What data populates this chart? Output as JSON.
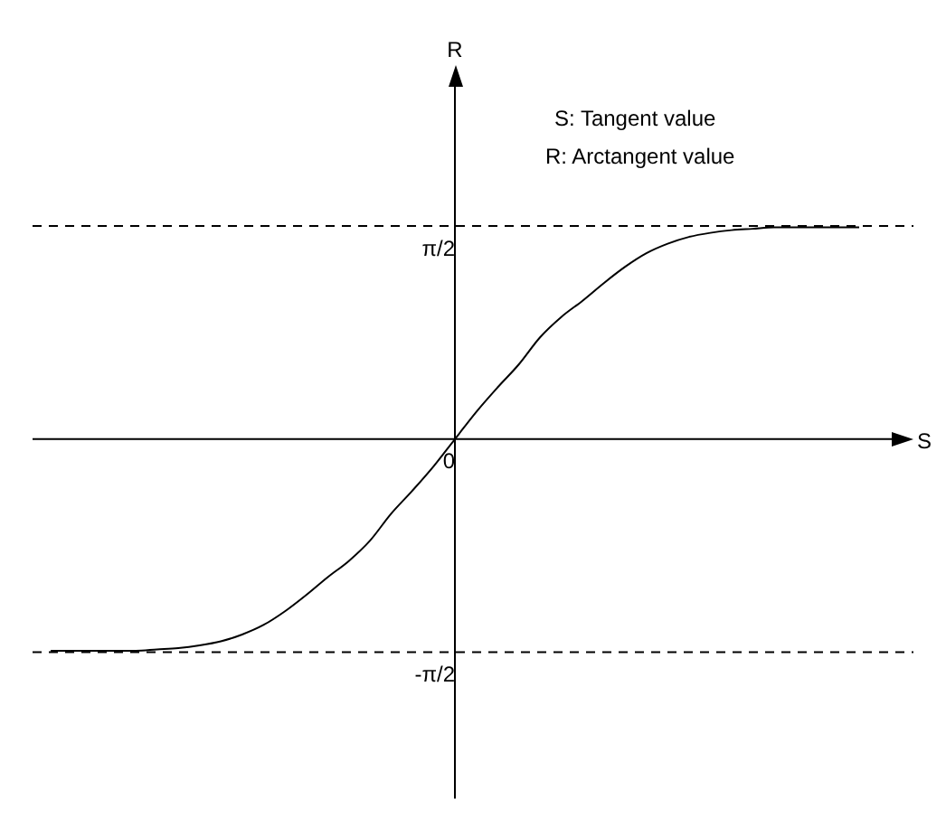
{
  "chart_data": {
    "type": "line",
    "xlabel": "S",
    "ylabel": "R",
    "annotations": [
      "S: Tangent value",
      "R: Arctangent value"
    ],
    "categories": [
      null,
      null,
      null,
      null,
      null,
      null,
      null,
      null,
      null,
      null,
      null,
      null,
      null,
      null,
      null,
      null,
      null,
      null,
      null,
      null,
      null,
      null,
      null,
      null,
      null,
      null,
      null,
      null,
      null,
      null,
      null,
      null,
      null,
      null,
      null,
      null,
      null,
      null,
      null
    ],
    "series": [
      {
        "color": "#000000",
        "values": [
          -1.56,
          -1.56,
          -1.56,
          -1.56,
          -1.56,
          -1.55,
          -1.54,
          -1.52,
          -1.49,
          -1.44,
          -1.37,
          -1.27,
          -1.15,
          -1.02,
          -0.9,
          -0.75,
          -0.55,
          -0.38,
          -0.2,
          0,
          0.2,
          0.38,
          0.55,
          0.75,
          0.9,
          1.02,
          1.15,
          1.27,
          1.37,
          1.44,
          1.49,
          1.52,
          1.54,
          1.55,
          1.56,
          1.56,
          1.56,
          1.56,
          1.56
        ]
      }
    ],
    "ylim": [
      -2.65,
      2.65
    ],
    "yticks": [
      {
        "value": -1.5708,
        "label": "-π/2"
      },
      {
        "value": 0,
        "label": "0"
      },
      {
        "value": 1.5708,
        "label": "π/2"
      }
    ],
    "ref_lines": [
      {
        "axis": "y",
        "value": 1.5708,
        "line_style": "dashed",
        "color": "#000000"
      },
      {
        "axis": "y",
        "value": -1.5708,
        "line_style": "dashed",
        "color": "#000000"
      }
    ],
    "grid": false,
    "legend": false,
    "marker": "none",
    "line_style": "solid"
  }
}
